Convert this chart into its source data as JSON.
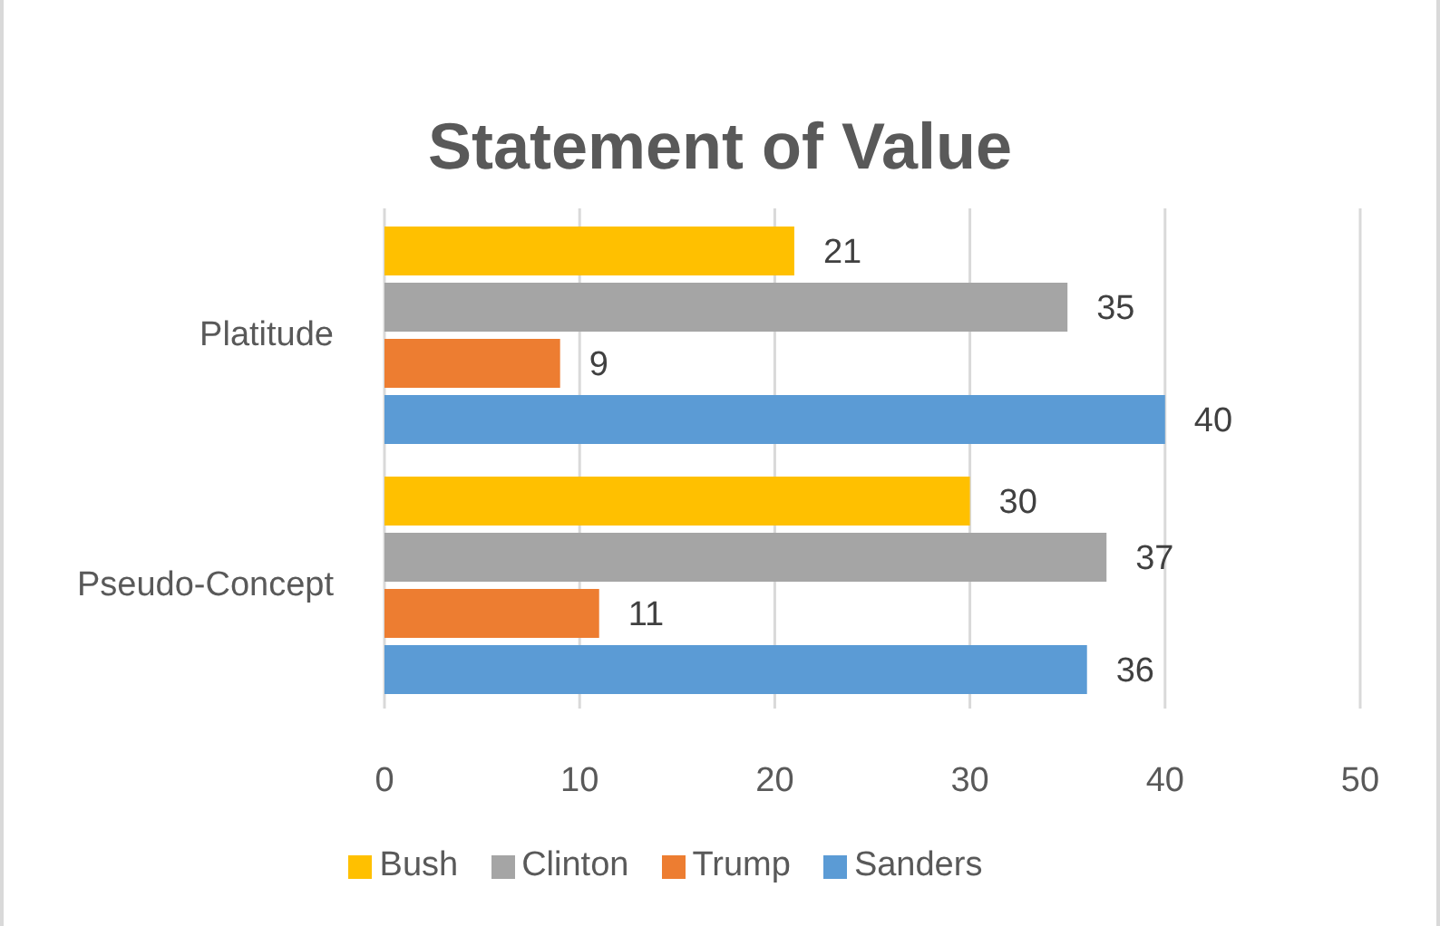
{
  "chart_data": {
    "type": "bar",
    "orientation": "horizontal",
    "title": "Statement of Value",
    "categories": [
      "Platitude",
      "Pseudo-Concept"
    ],
    "series": [
      {
        "name": "Bush",
        "color": "#ffc000",
        "values": [
          21,
          30
        ]
      },
      {
        "name": "Clinton",
        "color": "#a5a5a5",
        "values": [
          35,
          37
        ]
      },
      {
        "name": "Trump",
        "color": "#ed7d31",
        "values": [
          9,
          11
        ]
      },
      {
        "name": "Sanders",
        "color": "#5b9bd5",
        "values": [
          40,
          36
        ]
      }
    ],
    "xlim": [
      0,
      50
    ],
    "xticks": [
      0,
      10,
      20,
      30,
      40,
      50
    ],
    "grid": "x",
    "legend": "bottom",
    "data_labels": true
  }
}
